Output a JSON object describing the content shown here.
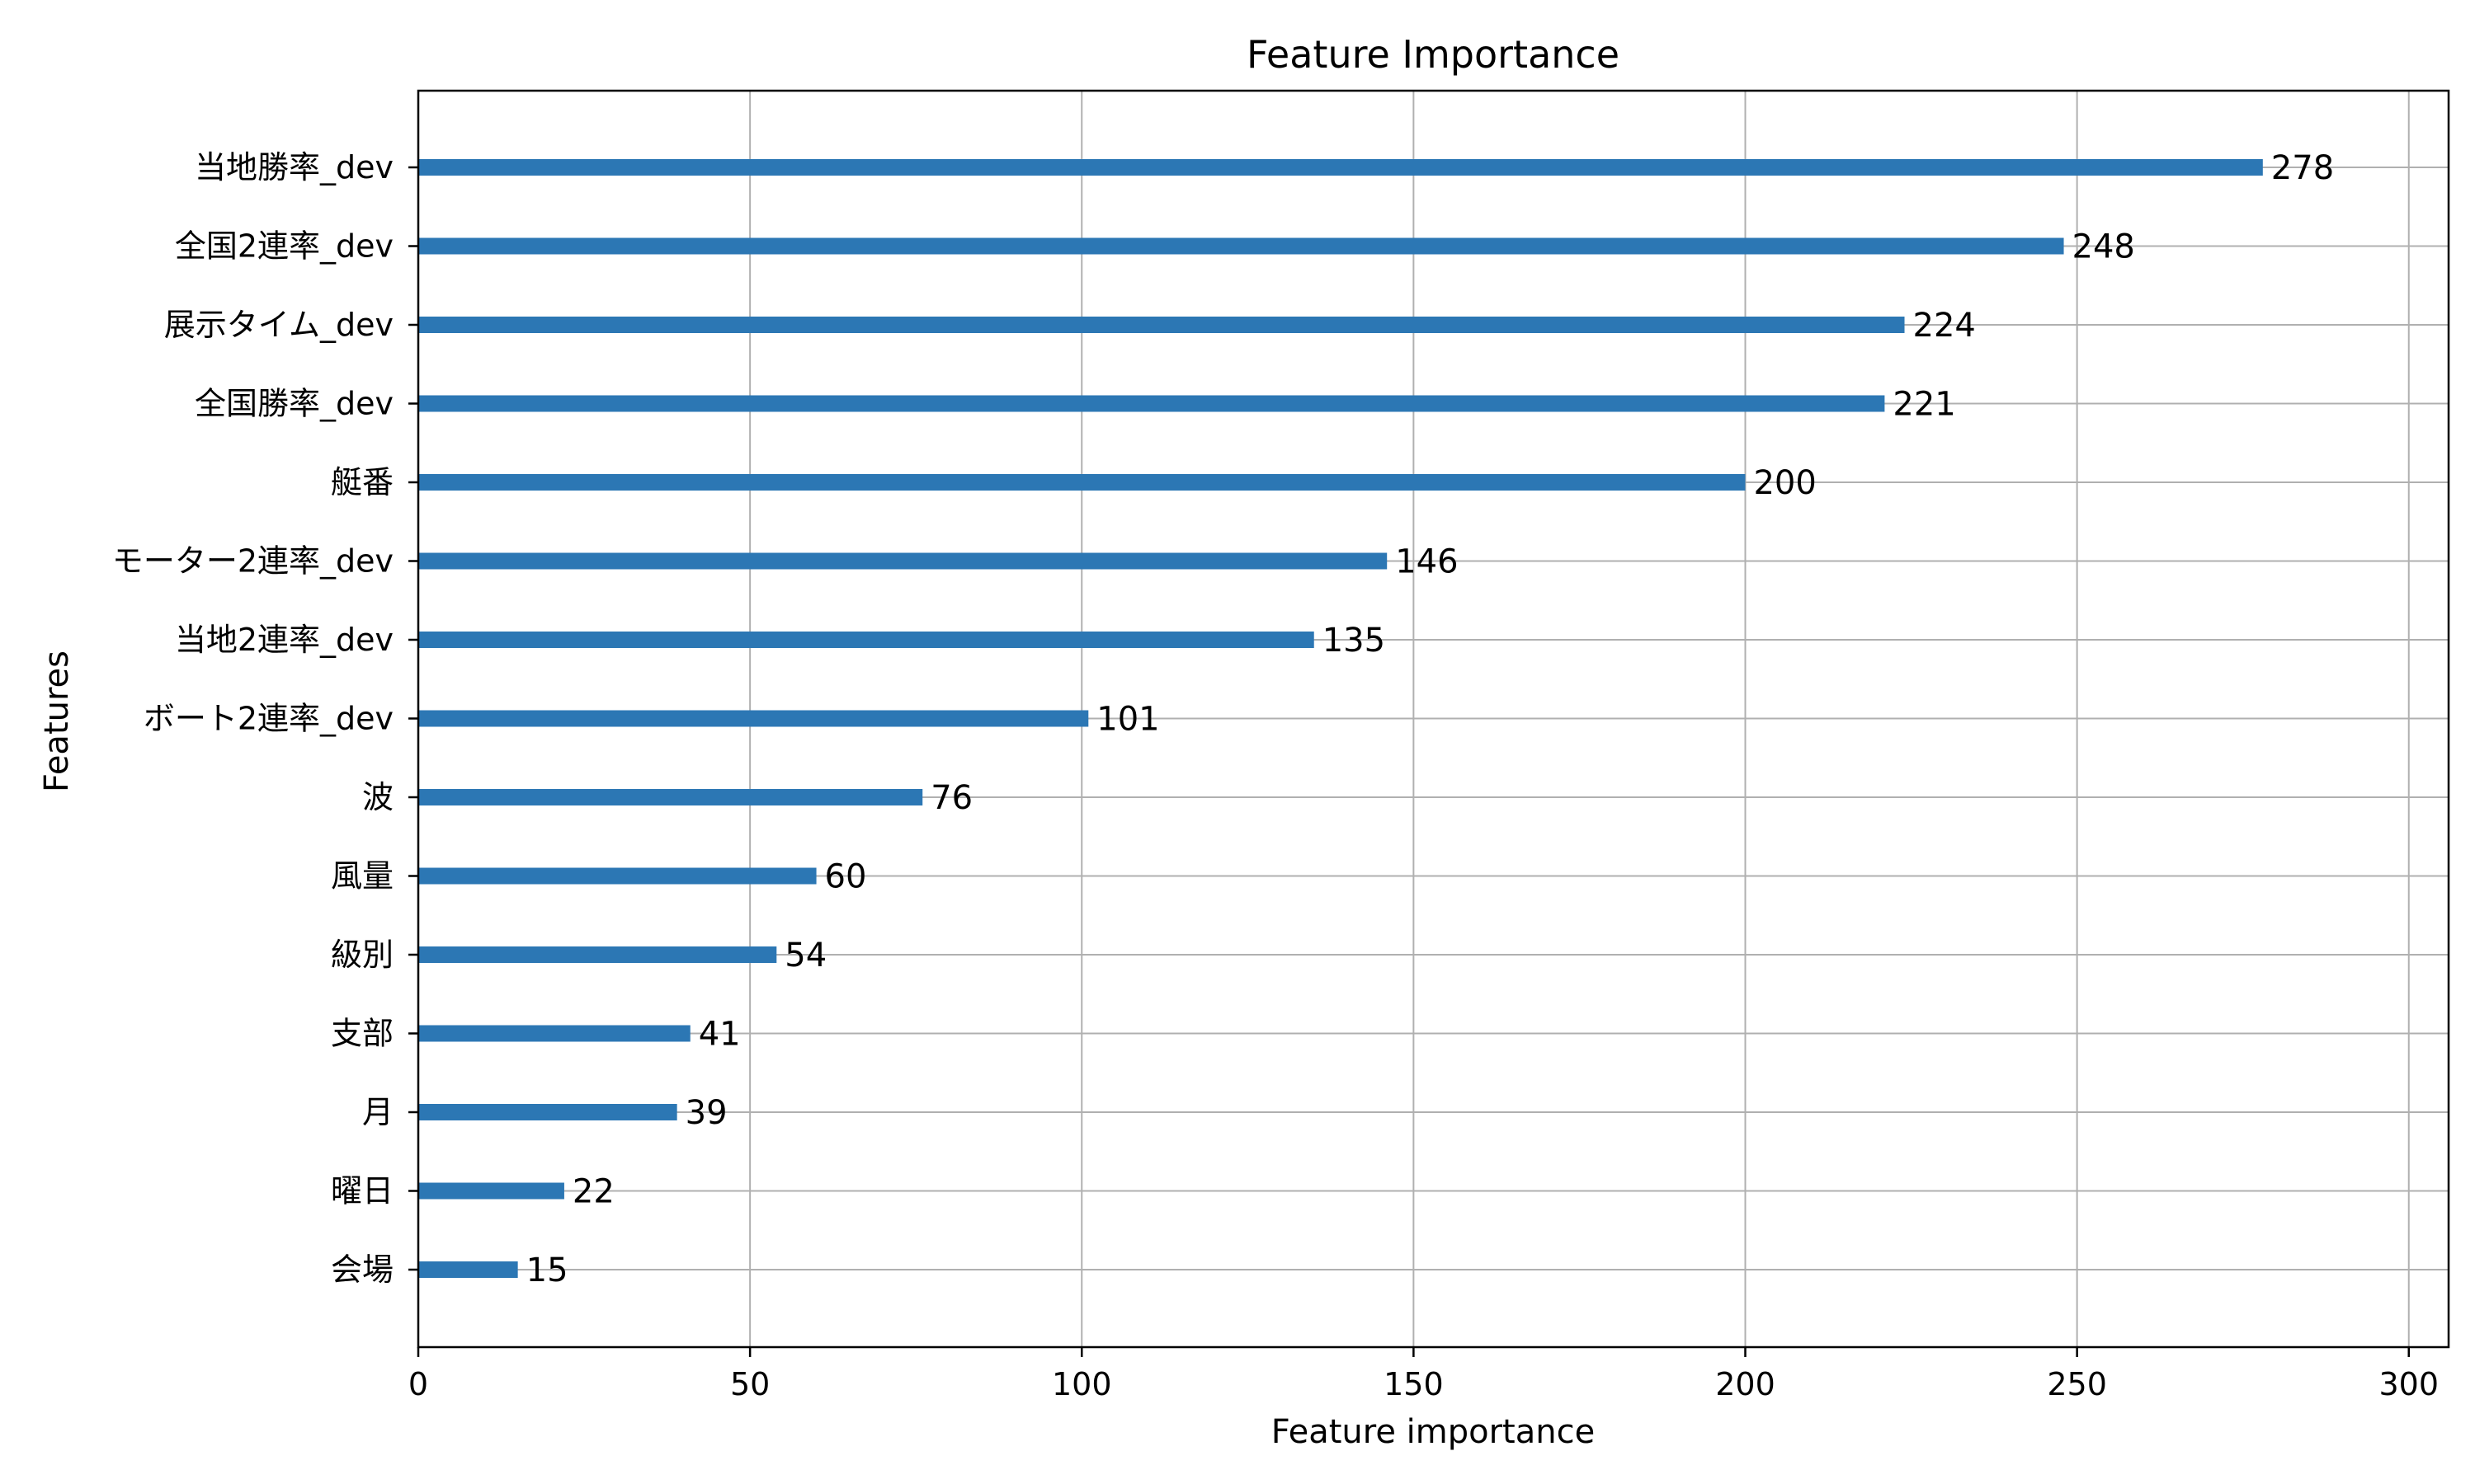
{
  "chart_data": {
    "type": "bar",
    "orientation": "horizontal",
    "title": "Feature Importance",
    "xlabel": "Feature importance",
    "ylabel": "Features",
    "xlim": [
      0,
      306
    ],
    "xticks": [
      "0",
      "50",
      "100",
      "150",
      "200",
      "250",
      "300"
    ],
    "grid": true,
    "bar_color": "#2c77b4",
    "categories": [
      "当地勝率_dev",
      "全国2連率_dev",
      "展示タイム_dev",
      "全国勝率_dev",
      "艇番",
      "モーター2連率_dev",
      "当地2連率_dev",
      "ボート2連率_dev",
      "波",
      "風量",
      "級別",
      "支部",
      "月",
      "曜日",
      "会場"
    ],
    "values": [
      278,
      248,
      224,
      221,
      200,
      146,
      135,
      101,
      76,
      60,
      54,
      41,
      39,
      22,
      15
    ],
    "value_labels": [
      "278",
      "248",
      "224",
      "221",
      "200",
      "146",
      "135",
      "101",
      "76",
      "60",
      "54",
      "41",
      "39",
      "22",
      "15"
    ]
  }
}
